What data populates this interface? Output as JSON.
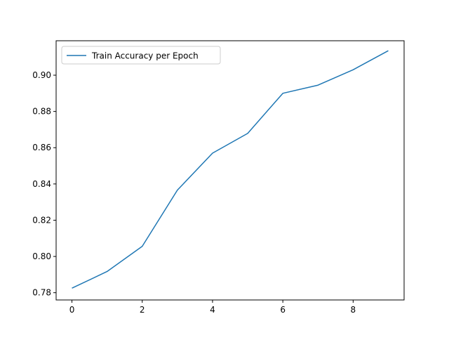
{
  "chart_data": {
    "type": "line",
    "title": "",
    "xlabel": "",
    "ylabel": "",
    "xlim": [
      -0.45,
      9.45
    ],
    "ylim": [
      0.776,
      0.919
    ],
    "x_ticks": [
      0,
      2,
      4,
      6,
      8
    ],
    "y_ticks": [
      0.78,
      0.8,
      0.82,
      0.84,
      0.86,
      0.88,
      0.9
    ],
    "grid": false,
    "legend_position": "upper-left",
    "series": [
      {
        "name": "Train Accuracy per Epoch",
        "color": "#1f77b4",
        "x": [
          0,
          1,
          2,
          3,
          4,
          5,
          6,
          7,
          8,
          9
        ],
        "y": [
          0.7825,
          0.7917,
          0.8056,
          0.8366,
          0.857,
          0.8679,
          0.89,
          0.8945,
          0.903,
          0.9135
        ]
      }
    ]
  }
}
